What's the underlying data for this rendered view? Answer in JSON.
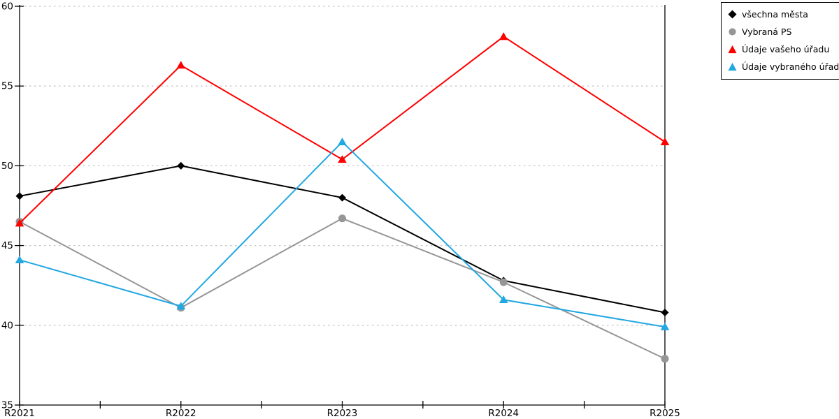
{
  "chart_data": {
    "type": "line",
    "title": "",
    "categories": [
      "R2021",
      "R2022",
      "R2023",
      "R2024",
      "R2025"
    ],
    "series": [
      {
        "name": "všechna města",
        "marker": "diamond",
        "color": "#000000",
        "values": [
          48.1,
          50.0,
          48.0,
          42.8,
          40.8
        ]
      },
      {
        "name": "Vybraná PS",
        "marker": "circle",
        "color": "#969696",
        "values": [
          46.5,
          41.1,
          46.7,
          42.7,
          37.9
        ]
      },
      {
        "name": "Údaje vašeho úřadu",
        "marker": "triangle",
        "color": "#fe0000",
        "values": [
          46.4,
          56.3,
          50.4,
          58.1,
          51.5
        ]
      },
      {
        "name": "Údaje vybraného úřadu",
        "marker": "triangle",
        "color": "#21a7e2",
        "values": [
          44.1,
          41.2,
          51.5,
          41.6,
          39.9
        ]
      }
    ],
    "ylim": [
      35,
      60
    ],
    "yticks": [
      35,
      40,
      45,
      50,
      55,
      60
    ],
    "xlabel": "",
    "ylabel": "",
    "grid": "horizontal-dotted",
    "minor_xticks_between_categories": true,
    "legend_position": "top-right",
    "legend_entries": [
      "všechna města",
      "Vybraná PS",
      "Údaje vašeho úřadu",
      "Údaje vybraného úřadu"
    ]
  },
  "colors": {
    "background": "#ffffff",
    "axis": "#000000",
    "grid": "#c6c6c6",
    "text": "#000000"
  }
}
